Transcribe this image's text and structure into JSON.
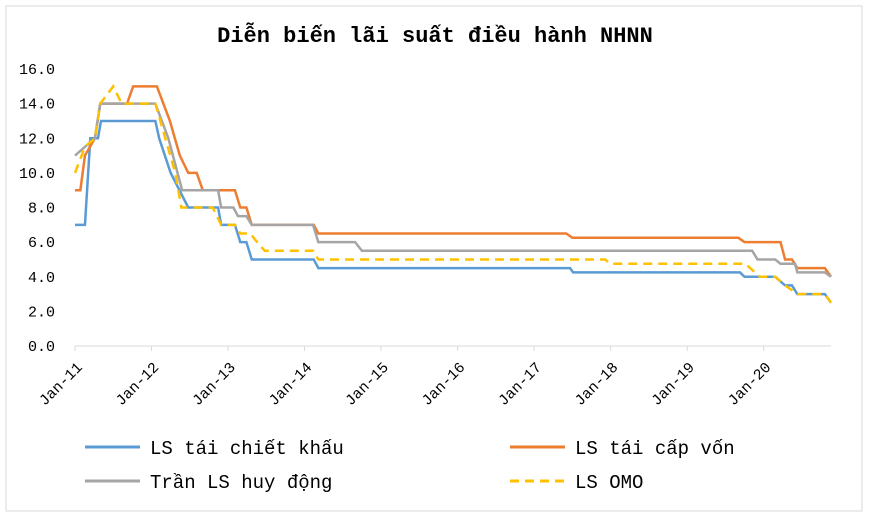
{
  "chart_data": {
    "type": "line",
    "title": "Diễn biến lãi suất điều hành NHNN",
    "xlim": [
      2011,
      2020.88
    ],
    "xticks": [
      {
        "value": 2011,
        "label": "Jan-11"
      },
      {
        "value": 2012,
        "label": "Jan-12"
      },
      {
        "value": 2013,
        "label": "Jan-13"
      },
      {
        "value": 2014,
        "label": "Jan-14"
      },
      {
        "value": 2015,
        "label": "Jan-15"
      },
      {
        "value": 2016,
        "label": "Jan-16"
      },
      {
        "value": 2017,
        "label": "Jan-17"
      },
      {
        "value": 2018,
        "label": "Jan-18"
      },
      {
        "value": 2019,
        "label": "Jan-19"
      },
      {
        "value": 2020,
        "label": "Jan-20"
      }
    ],
    "ylim": [
      0,
      16
    ],
    "yticks": [
      {
        "value": 0,
        "label": "0.0"
      },
      {
        "value": 2,
        "label": "2.0"
      },
      {
        "value": 4,
        "label": "4.0"
      },
      {
        "value": 6,
        "label": "6.0"
      },
      {
        "value": 8,
        "label": "8.0"
      },
      {
        "value": 10,
        "label": "10.0"
      },
      {
        "value": 12,
        "label": "12.0"
      },
      {
        "value": 14,
        "label": "14.0"
      },
      {
        "value": 16,
        "label": "16.0"
      }
    ],
    "grid": false,
    "series": [
      {
        "name": "LS tái chiết khấu",
        "color": "#5b9bd5",
        "dash": false,
        "x": [
          2011,
          2011.13,
          2011.2,
          2011.3,
          2011.34,
          2012.05,
          2012.1,
          2012.25,
          2012.48,
          2012.87,
          2012.91,
          2013.09,
          2013.16,
          2013.24,
          2013.31,
          2014.12,
          2014.18,
          2017.47,
          2017.51,
          2019.69,
          2019.75,
          2020.15,
          2020.28,
          2020.37,
          2020.44,
          2020.8,
          2020.88
        ],
        "values": [
          7,
          7,
          12,
          12,
          13,
          13,
          12,
          10,
          8,
          8,
          7,
          7,
          6,
          6,
          5,
          5,
          4.5,
          4.5,
          4.25,
          4.25,
          4,
          4,
          3.5,
          3.5,
          3,
          3,
          2.5
        ]
      },
      {
        "name": "LS tái cấp vốn",
        "color": "#ed7d31",
        "dash": false,
        "x": [
          2011,
          2011.07,
          2011.13,
          2011.26,
          2011.33,
          2011.68,
          2011.76,
          2012.07,
          2012.24,
          2012.37,
          2012.48,
          2012.59,
          2012.67,
          2013.09,
          2013.16,
          2013.24,
          2013.31,
          2014.12,
          2014.18,
          2017.42,
          2017.5,
          2019.67,
          2019.75,
          2020.22,
          2020.28,
          2020.37,
          2020.44,
          2020.8,
          2020.88
        ],
        "values": [
          9,
          9,
          11,
          12,
          14,
          14,
          15,
          15,
          13,
          11,
          10,
          10,
          9,
          9,
          8,
          8,
          7,
          7,
          6.5,
          6.5,
          6.25,
          6.25,
          6,
          6,
          5,
          5,
          4.5,
          4.5,
          4
        ]
      },
      {
        "name": "Trần LS huy động",
        "color": "#a5a5a5",
        "dash": false,
        "x": [
          2011,
          2011.26,
          2011.33,
          2012.05,
          2012.22,
          2012.4,
          2012.87,
          2012.91,
          2013.07,
          2013.13,
          2013.24,
          2013.31,
          2014.11,
          2014.18,
          2014.66,
          2014.75,
          2019.85,
          2019.92,
          2020.15,
          2020.22,
          2020.41,
          2020.44,
          2020.8,
          2020.88
        ],
        "values": [
          11,
          12,
          14,
          14,
          12,
          9,
          9,
          8,
          8,
          7.5,
          7.5,
          7,
          7,
          6,
          6,
          5.5,
          5.5,
          5,
          5,
          4.75,
          4.75,
          4.25,
          4.25,
          4
        ]
      },
      {
        "name": "LS OMO",
        "color": "#ffc000",
        "dash": true,
        "x": [
          2011,
          2011.13,
          2011.26,
          2011.33,
          2011.5,
          2011.61,
          2012.05,
          2012.18,
          2012.31,
          2012.39,
          2012.8,
          2012.91,
          2013.09,
          2013.16,
          2013.29,
          2013.38,
          2013.48,
          2014.11,
          2014.18,
          2017.93,
          2017.99,
          2019.76,
          2019.95,
          2020.15,
          2020.28,
          2020.44,
          2020.8,
          2020.88
        ],
        "values": [
          10,
          11.5,
          12,
          14,
          15,
          14,
          14,
          12,
          10,
          8,
          8,
          7,
          7,
          6.5,
          6.5,
          6,
          5.5,
          5.5,
          5,
          5,
          4.75,
          4.75,
          4,
          4,
          3.5,
          3,
          3,
          2.5
        ]
      }
    ]
  }
}
